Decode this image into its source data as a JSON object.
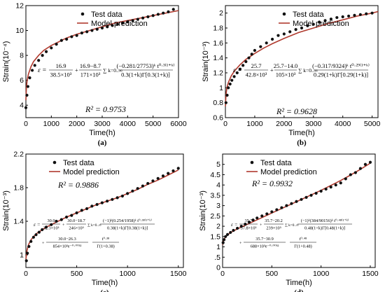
{
  "legend": {
    "test": "Test data",
    "model": "Model prediction"
  },
  "colors": {
    "model": "#b03a2e",
    "data": "#111111",
    "axis": "#000000"
  },
  "chart_data": [
    {
      "id": "a",
      "caption": "(a)",
      "type": "scatter",
      "xlabel": "Time(h)",
      "ylabel": "Strain(10⁻⁴)",
      "xlim": [
        0,
        6000
      ],
      "ylim": [
        3,
        12
      ],
      "xticks": [
        0,
        1000,
        2000,
        3000,
        4000,
        5000,
        6000
      ],
      "yticks": [
        4,
        6,
        8,
        10,
        12
      ],
      "r2": "R² = 0.9753",
      "equation": {
        "lhs": "ε =",
        "t1_num": "16.9",
        "t1_den": "38.5×10³",
        "t2_num": "16.9−8.7",
        "t2_den": "171×10³",
        "sum": "∑ k=0..∞",
        "t3_num": "(−0.281/27753)ᵏ t⁰·³⁽¹⁺ᵏ⁾",
        "t3_den": "0.3(1+k)Γ[0.3(1+k)]"
      },
      "series": [
        {
          "name": "Test data",
          "kind": "points",
          "x": [
            0,
            40,
            80,
            150,
            250,
            350,
            500,
            650,
            800,
            1000,
            1200,
            1400,
            1600,
            1800,
            2000,
            2200,
            2400,
            2600,
            2800,
            3000,
            3200,
            3400,
            3600,
            3800,
            4000,
            4200,
            4400,
            4600,
            4800,
            5000,
            5200,
            5400,
            5600,
            5800
          ],
          "y": [
            3.8,
            4.8,
            5.5,
            6.2,
            6.8,
            7.2,
            7.6,
            8.0,
            8.3,
            8.6,
            8.9,
            9.2,
            9.3,
            9.5,
            9.6,
            9.8,
            9.9,
            10.0,
            10.1,
            10.2,
            10.3,
            10.4,
            10.5,
            10.6,
            10.7,
            10.8,
            10.9,
            11.0,
            11.1,
            11.2,
            11.3,
            11.4,
            11.5,
            11.7
          ]
        },
        {
          "name": "Model prediction",
          "kind": "curve",
          "x": [
            0,
            20,
            50,
            100,
            200,
            300,
            500,
            700,
            1000,
            1300,
            1600,
            2000,
            2500,
            3000,
            3500,
            4000,
            4500,
            5000,
            5500,
            6000
          ],
          "y": [
            4.4,
            5.4,
            6.0,
            6.5,
            7.1,
            7.5,
            8.0,
            8.4,
            8.8,
            9.1,
            9.4,
            9.7,
            10.0,
            10.3,
            10.6,
            10.8,
            11.0,
            11.2,
            11.4,
            11.6
          ]
        }
      ]
    },
    {
      "id": "b",
      "caption": "(b)",
      "type": "scatter",
      "xlabel": "Time(h)",
      "ylabel": "Strain(10⁻³)",
      "xlim": [
        0,
        5200
      ],
      "ylim": [
        0.6,
        2.1
      ],
      "xticks": [
        0,
        1000,
        2000,
        3000,
        4000,
        5000
      ],
      "yticks": [
        0.6,
        0.8,
        1,
        1.2,
        1.4,
        1.6,
        1.8,
        2
      ],
      "r2": "R² = 0.9628",
      "equation": {
        "lhs": "ε =",
        "t1_num": "25.7",
        "t1_den": "42.8×10³",
        "t2_num": "25.7−14.0",
        "t2_den": "105×10³",
        "sum": "∑ k=0..∞",
        "t3_num": "(−0.317/9324)ᵏ t⁰·²⁹⁽¹⁺ᵏ⁾",
        "t3_den": "0.29(1+k)Γ[0.29(1+k)]"
      },
      "series": [
        {
          "name": "Test data",
          "kind": "points",
          "x": [
            20,
            60,
            100,
            160,
            220,
            300,
            400,
            500,
            600,
            700,
            800,
            900,
            1000,
            1200,
            1400,
            1600,
            1800,
            2000,
            2200,
            2400,
            2600,
            2800,
            3000,
            3200,
            3400,
            3600,
            3800,
            4000,
            4200,
            4400,
            4600,
            4800,
            5000
          ],
          "y": [
            0.8,
            0.9,
            1.0,
            1.05,
            1.1,
            1.15,
            1.2,
            1.25,
            1.3,
            1.35,
            1.4,
            1.45,
            1.5,
            1.55,
            1.6,
            1.65,
            1.7,
            1.72,
            1.75,
            1.78,
            1.8,
            1.83,
            1.85,
            1.88,
            1.9,
            1.92,
            1.94,
            1.95,
            1.96,
            1.97,
            1.98,
            1.99,
            2.0
          ]
        },
        {
          "name": "Model prediction",
          "kind": "curve",
          "x": [
            0,
            20,
            50,
            100,
            200,
            300,
            500,
            700,
            1000,
            1300,
            1600,
            2000,
            2500,
            3000,
            3500,
            4000,
            4500,
            5000,
            5200
          ],
          "y": [
            0.75,
            0.9,
            1.0,
            1.07,
            1.16,
            1.22,
            1.31,
            1.38,
            1.46,
            1.53,
            1.59,
            1.66,
            1.74,
            1.8,
            1.86,
            1.91,
            1.96,
            2.0,
            2.02
          ]
        }
      ]
    },
    {
      "id": "c",
      "caption": "(c)",
      "type": "scatter",
      "xlabel": "Time(h)",
      "ylabel": "Strain(10⁻³)",
      "xlim": [
        0,
        1550
      ],
      "ylim": [
        0.85,
        2.2
      ],
      "xticks": [
        0,
        500,
        1000,
        1500
      ],
      "yticks": [
        1.0,
        1.4,
        1.8,
        2.2
      ],
      "r2": "R² = 0.9886",
      "equation": {
        "lhs": "ε =",
        "t1_num": "30.0",
        "t1_den": "32.3×10³",
        "t2_num": "30.0−18.7",
        "t2_den": "246×10³",
        "sum": "∑ k=0..∞",
        "t3_num": "(−1)ᵏ(0.254/1958)ᵏ t⁰·³⁸⁽¹⁺ᵏ⁾",
        "t3_den": "0.38(1+k)Γ[0.38(1+k)]",
        "t4_num": "30.0−26.3",
        "t4_den": "854×10³e⁻⁰·⁰⁰³²",
        "t4b_num": "t⁰·³⁸",
        "t4b_den": "Γ(1+0.38)"
      },
      "series": [
        {
          "name": "Test data",
          "kind": "points",
          "x": [
            5,
            15,
            30,
            50,
            75,
            100,
            130,
            160,
            200,
            250,
            300,
            350,
            400,
            450,
            500,
            550,
            600,
            650,
            700,
            750,
            800,
            850,
            900,
            950,
            1000,
            1050,
            1100,
            1150,
            1200,
            1250,
            1300,
            1350,
            1400,
            1450,
            1500
          ],
          "y": [
            0.93,
            1.02,
            1.1,
            1.16,
            1.21,
            1.24,
            1.27,
            1.3,
            1.33,
            1.36,
            1.4,
            1.42,
            1.45,
            1.47,
            1.5,
            1.53,
            1.55,
            1.58,
            1.6,
            1.62,
            1.64,
            1.66,
            1.68,
            1.7,
            1.73,
            1.76,
            1.79,
            1.82,
            1.85,
            1.88,
            1.91,
            1.94,
            1.97,
            2.0,
            2.03
          ]
        },
        {
          "name": "Model prediction",
          "kind": "curve",
          "x": [
            0,
            10,
            25,
            50,
            100,
            150,
            200,
            300,
            400,
            500,
            600,
            700,
            800,
            900,
            1000,
            1100,
            1200,
            1300,
            1400,
            1500
          ],
          "y": [
            0.95,
            1.05,
            1.12,
            1.18,
            1.25,
            1.29,
            1.33,
            1.39,
            1.45,
            1.5,
            1.55,
            1.6,
            1.64,
            1.68,
            1.73,
            1.78,
            1.84,
            1.89,
            1.95,
            2.01
          ]
        }
      ]
    },
    {
      "id": "d",
      "caption": "(d)",
      "type": "scatter",
      "xlabel": "Time(h)",
      "ylabel": "Strain(10⁻³)",
      "xlim": [
        0,
        1550
      ],
      "ylim": [
        0,
        5.5
      ],
      "xticks": [
        0,
        500,
        1000,
        1500
      ],
      "yticks": [
        0,
        0.5,
        1,
        1.5,
        2,
        2.5,
        3,
        3.5,
        4,
        4.5,
        5
      ],
      "yticklabels": [
        "0",
        ".5",
        "1",
        "1.5",
        "2",
        "2.5",
        "3",
        "3.5",
        "4",
        "4.5",
        "5"
      ],
      "r2": "R² = 0.9932",
      "equation": {
        "lhs": "ε =",
        "t1_num": "35.7",
        "t1_den": "37.8×10³",
        "t2_num": "35.7−20.2",
        "t2_den": "239×10³",
        "sum": "∑ k=0..∞",
        "t3_num": "(−1)ᵏ(384/90156)ᵏ t⁰·⁴⁸⁽¹⁺ᵏ⁾",
        "t3_den": "0.48(1+k)Γ[0.48(1+k)]",
        "t4_num": "35.7−30.9",
        "t4_den": "688×10³e⁻⁰·⁰⁰³²",
        "t4b_num": "t⁰·⁴⁸",
        "t4b_den": "Γ(1+0.48)"
      },
      "series": [
        {
          "name": "Test data",
          "kind": "points",
          "x": [
            5,
            15,
            30,
            50,
            80,
            110,
            150,
            190,
            230,
            270,
            310,
            350,
            400,
            450,
            500,
            550,
            600,
            650,
            700,
            750,
            800,
            850,
            900,
            950,
            1000,
            1050,
            1100,
            1150,
            1200,
            1250,
            1300,
            1350,
            1400,
            1450,
            1500
          ],
          "y": [
            1.2,
            1.35,
            1.5,
            1.6,
            1.7,
            1.8,
            1.9,
            2.0,
            2.1,
            2.2,
            2.3,
            2.4,
            2.5,
            2.6,
            2.7,
            2.8,
            2.9,
            3.0,
            3.1,
            3.2,
            3.3,
            3.4,
            3.5,
            3.6,
            3.7,
            3.8,
            3.9,
            4.0,
            4.1,
            4.3,
            4.5,
            4.6,
            4.8,
            5.0,
            5.1
          ]
        },
        {
          "name": "Model prediction",
          "kind": "curve",
          "x": [
            0,
            10,
            25,
            50,
            100,
            150,
            200,
            300,
            400,
            500,
            600,
            700,
            800,
            900,
            1000,
            1100,
            1200,
            1300,
            1400,
            1500
          ],
          "y": [
            1.1,
            1.3,
            1.45,
            1.58,
            1.75,
            1.87,
            1.98,
            2.2,
            2.42,
            2.64,
            2.86,
            3.08,
            3.3,
            3.52,
            3.74,
            3.98,
            4.22,
            4.48,
            4.76,
            5.06
          ]
        }
      ]
    }
  ]
}
